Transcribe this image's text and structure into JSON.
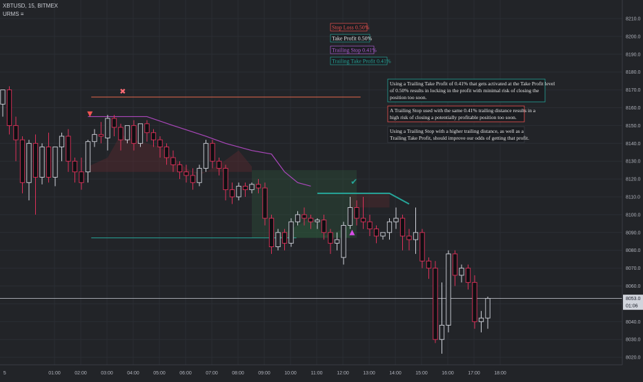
{
  "header": {
    "symbol_line": "XBTUSD, 15, BITMEX",
    "indicator_label": "URMS",
    "indicator_toggle_glyph": "≡"
  },
  "legend": [
    {
      "text": "Stop Loss 0.50%",
      "text_color": "#ef5350",
      "border_color": "#ef5350"
    },
    {
      "text": "Take Profit 0.50%",
      "text_color": "#e6e6e6",
      "border_color": "#26a69a"
    },
    {
      "text": "Trailing Stop 0.41%",
      "text_color": "#b05fd6",
      "border_color": "#b05fd6"
    },
    {
      "text": "Trailing Take Profit 0.41%",
      "text_color": "#26a69a",
      "border_color": "#26a69a"
    }
  ],
  "notes": [
    {
      "lines": [
        "Using a Trailing Take Profit of 0.41% that gets activated at the Take Profit level",
        "of 0.50% results in locking in the profit with minimal risk of closing the",
        "position too soon."
      ],
      "border_color": "#26a69a"
    },
    {
      "lines": [
        "A Trailing Stop used with the same 0.41% trailing distance results in a",
        "high risk of closing a potentially profitable position too soon."
      ],
      "border_color": "#ef5350"
    },
    {
      "lines": [
        "Using a Trailing Stop with a higher trailing distance, as well as a",
        "Trailing Take Profit, should improve our odds of getting that profit."
      ],
      "border_color": "#3a3d45"
    }
  ],
  "price_axis": {
    "ticks": [
      "8020.0",
      "8030.0",
      "8040.0",
      "8050.0",
      "8060.0",
      "8070.0",
      "8080.0",
      "8090.0",
      "8100.0",
      "8110.0",
      "8120.0",
      "8130.0",
      "8140.0",
      "8150.0",
      "8160.0",
      "8170.0",
      "8180.0",
      "8190.0",
      "8200.0",
      "8210.0"
    ],
    "current_price_label": "8053.0",
    "countdown_label": "01:06"
  },
  "time_axis": {
    "labels": [
      "5",
      "01:00",
      "02:00",
      "03:00",
      "04:00",
      "05:00",
      "06:00",
      "07:00",
      "08:00",
      "09:00",
      "10:00",
      "11:00",
      "12:00",
      "13:00",
      "14:00",
      "15:00",
      "16:00",
      "17:00",
      "18:00"
    ]
  },
  "markers": {
    "stop_hit_glyph": "✖",
    "trailing_take_profit_hit_glyph": "✔",
    "short_entry_color": "#ef5350",
    "long_entry_color": "#d84ee8"
  },
  "colors": {
    "background": "#222428",
    "grid": "#2b2e34",
    "candle_up_border": "#d1d4dc",
    "candle_down_fill": "#0e0f12",
    "candle_down_border": "#e0315a",
    "stop_loss": "#e8674d",
    "take_profit": "#26a69a",
    "trailing_stop": "#ab47bc",
    "trailing_take_profit": "#26a69a",
    "loss_fill": "#5a2a2e",
    "profit_fill": "#2e5a3c",
    "current_price_line": "#d1d4dc"
  },
  "chart_data": {
    "type": "candlestick",
    "ylim": [
      8018,
      8218
    ],
    "x_ticks": [
      "01:00",
      "02:00",
      "03:00",
      "04:00",
      "05:00",
      "06:00",
      "07:00",
      "08:00",
      "09:00",
      "10:00",
      "11:00",
      "12:00",
      "13:00",
      "14:00",
      "15:00",
      "16:00",
      "17:00",
      "18:00"
    ],
    "first_bar_time": "00:00",
    "bar_interval_minutes": 15,
    "candles": [
      {
        "o": 8162,
        "h": 8169,
        "c": 8170,
        "l": 8155
      },
      {
        "o": 8170,
        "h": 8172,
        "c": 8150,
        "l": 8145
      },
      {
        "o": 8150,
        "h": 8155,
        "c": 8142,
        "l": 8130
      },
      {
        "o": 8142,
        "h": 8144,
        "c": 8118,
        "l": 8112
      },
      {
        "o": 8118,
        "h": 8142,
        "c": 8140,
        "l": 8108
      },
      {
        "o": 8140,
        "h": 8145,
        "c": 8121,
        "l": 8100
      },
      {
        "o": 8121,
        "h": 8140,
        "c": 8138,
        "l": 8117
      },
      {
        "o": 8138,
        "h": 8146,
        "c": 8121,
        "l": 8118
      },
      {
        "o": 8121,
        "h": 8138,
        "c": 8138,
        "l": 8116
      },
      {
        "o": 8138,
        "h": 8146,
        "c": 8144,
        "l": 8130
      },
      {
        "o": 8144,
        "h": 8148,
        "c": 8130,
        "l": 8124
      },
      {
        "o": 8130,
        "h": 8132,
        "c": 8124,
        "l": 8118
      },
      {
        "o": 8124,
        "h": 8132,
        "c": 8118,
        "l": 8114
      },
      {
        "o": 8124,
        "h": 8142,
        "c": 8141,
        "l": 8118
      },
      {
        "o": 8141,
        "h": 8148,
        "c": 8145,
        "l": 8138
      },
      {
        "o": 8145,
        "h": 8152,
        "c": 8144,
        "l": 8140
      },
      {
        "o": 8143,
        "h": 8156,
        "c": 8154,
        "l": 8136
      },
      {
        "o": 8154,
        "h": 8156,
        "c": 8149,
        "l": 8144
      },
      {
        "o": 8149,
        "h": 8151,
        "c": 8142,
        "l": 8136
      },
      {
        "o": 8142,
        "h": 8150,
        "c": 8150,
        "l": 8140
      },
      {
        "o": 8150,
        "h": 8153,
        "c": 8140,
        "l": 8136
      },
      {
        "o": 8140,
        "h": 8151,
        "c": 8151,
        "l": 8138
      },
      {
        "o": 8151,
        "h": 8153,
        "c": 8146,
        "l": 8141
      },
      {
        "o": 8146,
        "h": 8148,
        "c": 8142,
        "l": 8138
      },
      {
        "o": 8142,
        "h": 8144,
        "c": 8138,
        "l": 8132
      },
      {
        "o": 8138,
        "h": 8140,
        "c": 8132,
        "l": 8128
      },
      {
        "o": 8132,
        "h": 8136,
        "c": 8128,
        "l": 8124
      },
      {
        "o": 8128,
        "h": 8130,
        "c": 8124,
        "l": 8120
      },
      {
        "o": 8124,
        "h": 8128,
        "c": 8122,
        "l": 8118
      },
      {
        "o": 8122,
        "h": 8126,
        "c": 8118,
        "l": 8114
      },
      {
        "o": 8118,
        "h": 8128,
        "c": 8126,
        "l": 8116
      },
      {
        "o": 8126,
        "h": 8142,
        "c": 8140,
        "l": 8124
      },
      {
        "o": 8140,
        "h": 8142,
        "c": 8130,
        "l": 8126
      },
      {
        "o": 8130,
        "h": 8132,
        "c": 8126,
        "l": 8122
      },
      {
        "o": 8126,
        "h": 8128,
        "c": 8114,
        "l": 8108
      },
      {
        "o": 8114,
        "h": 8118,
        "c": 8110,
        "l": 8106
      },
      {
        "o": 8110,
        "h": 8118,
        "c": 8116,
        "l": 8108
      },
      {
        "o": 8116,
        "h": 8118,
        "c": 8114,
        "l": 8110
      },
      {
        "o": 8114,
        "h": 8118,
        "c": 8117,
        "l": 8112
      },
      {
        "o": 8117,
        "h": 8120,
        "c": 8115,
        "l": 8112
      },
      {
        "o": 8115,
        "h": 8118,
        "c": 8098,
        "l": 8094
      },
      {
        "o": 8098,
        "h": 8100,
        "c": 8082,
        "l": 8078
      },
      {
        "o": 8082,
        "h": 8092,
        "c": 8090,
        "l": 8080
      },
      {
        "o": 8090,
        "h": 8092,
        "c": 8084,
        "l": 8080
      },
      {
        "o": 8084,
        "h": 8098,
        "c": 8096,
        "l": 8082
      },
      {
        "o": 8096,
        "h": 8102,
        "c": 8100,
        "l": 8094
      },
      {
        "o": 8100,
        "h": 8104,
        "c": 8098,
        "l": 8094
      },
      {
        "o": 8098,
        "h": 8100,
        "c": 8096,
        "l": 8092
      },
      {
        "o": 8096,
        "h": 8098,
        "c": 8097,
        "l": 8092
      },
      {
        "o": 8097,
        "h": 8100,
        "c": 8090,
        "l": 8086
      },
      {
        "o": 8090,
        "h": 8092,
        "c": 8084,
        "l": 8078
      },
      {
        "o": 8084,
        "h": 8090,
        "c": 8086,
        "l": 8080
      },
      {
        "o": 8076,
        "h": 8096,
        "c": 8094,
        "l": 8072
      },
      {
        "o": 8094,
        "h": 8110,
        "c": 8104,
        "l": 8092
      },
      {
        "o": 8104,
        "h": 8108,
        "c": 8098,
        "l": 8094
      },
      {
        "o": 8098,
        "h": 8110,
        "c": 8096,
        "l": 8092
      },
      {
        "o": 8096,
        "h": 8100,
        "c": 8092,
        "l": 8088
      },
      {
        "o": 8092,
        "h": 8094,
        "c": 8088,
        "l": 8084
      },
      {
        "o": 8088,
        "h": 8090,
        "c": 8090,
        "l": 8086
      },
      {
        "o": 8090,
        "h": 8098,
        "c": 8096,
        "l": 8086
      },
      {
        "o": 8096,
        "h": 8104,
        "c": 8098,
        "l": 8092
      },
      {
        "o": 8098,
        "h": 8100,
        "c": 8088,
        "l": 8080
      },
      {
        "o": 8088,
        "h": 8092,
        "c": 8086,
        "l": 8080
      },
      {
        "o": 8086,
        "h": 8104,
        "c": 8090,
        "l": 8078
      },
      {
        "o": 8090,
        "h": 8092,
        "c": 8074,
        "l": 8070
      },
      {
        "o": 8074,
        "h": 8076,
        "c": 8070,
        "l": 8064
      },
      {
        "o": 8070,
        "h": 8074,
        "c": 8030,
        "l": 8028
      },
      {
        "o": 8030,
        "h": 8062,
        "c": 8038,
        "l": 8022
      },
      {
        "o": 8038,
        "h": 8080,
        "c": 8078,
        "l": 8034
      },
      {
        "o": 8078,
        "h": 8080,
        "c": 8066,
        "l": 8060
      },
      {
        "o": 8066,
        "h": 8072,
        "c": 8070,
        "l": 8062
      },
      {
        "o": 8070,
        "h": 8072,
        "c": 8062,
        "l": 8058
      },
      {
        "o": 8062,
        "h": 8066,
        "c": 8040,
        "l": 8036
      },
      {
        "o": 8040,
        "h": 8046,
        "c": 8042,
        "l": 8034
      },
      {
        "o": 8042,
        "h": 8054,
        "c": 8053,
        "l": 8036
      }
    ],
    "levels": {
      "stop_loss": 8166,
      "take_profit": 8087,
      "trailing_stop": [
        {
          "bar": 13,
          "price": 8155
        },
        {
          "bar": 22,
          "price": 8155
        },
        {
          "bar": 26,
          "price": 8150
        },
        {
          "bar": 31,
          "price": 8144
        },
        {
          "bar": 34,
          "price": 8140
        },
        {
          "bar": 38,
          "price": 8136
        },
        {
          "bar": 41,
          "price": 8134
        },
        {
          "bar": 43,
          "price": 8124
        },
        {
          "bar": 45,
          "price": 8118
        },
        {
          "bar": 47,
          "price": 8116
        }
      ],
      "trailing_take_profit": [
        {
          "bar": 48,
          "price": 8112
        },
        {
          "bar": 59,
          "price": 8112
        },
        {
          "bar": 62,
          "price": 8106
        }
      ]
    },
    "current_price": 8053
  }
}
